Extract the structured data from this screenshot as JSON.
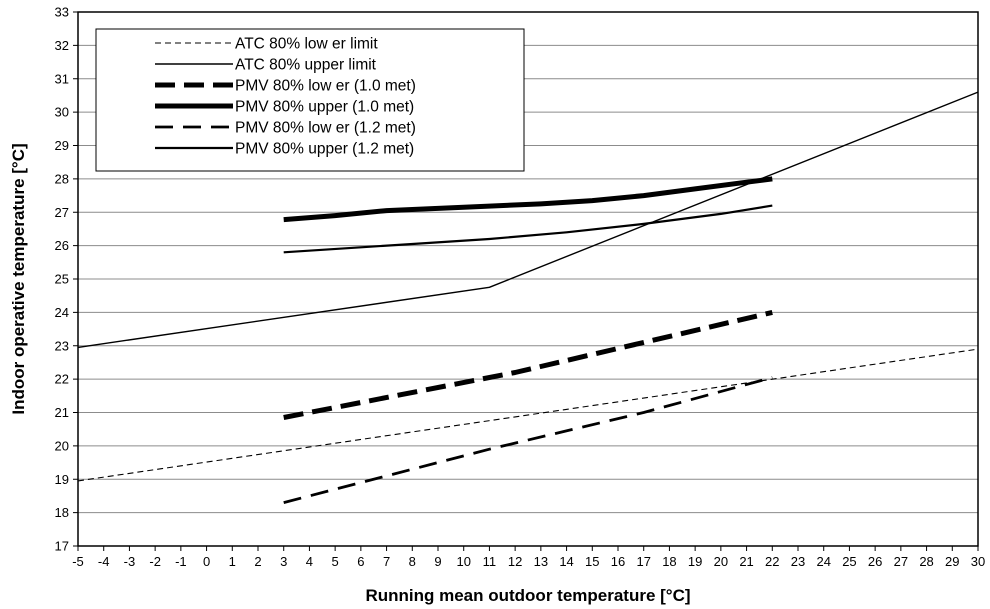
{
  "chart_data": {
    "type": "line",
    "title": "",
    "xlabel": "Running mean outdoor temperature [°C]",
    "ylabel": "Indoor operative temperature [°C]",
    "xlim": [
      -5,
      30
    ],
    "ylim": [
      17,
      33
    ],
    "x_ticks": [
      -5,
      -4,
      -3,
      -2,
      -1,
      0,
      1,
      2,
      3,
      4,
      5,
      6,
      7,
      8,
      9,
      10,
      11,
      12,
      13,
      14,
      15,
      16,
      17,
      18,
      19,
      20,
      21,
      22,
      23,
      24,
      25,
      26,
      27,
      28,
      29,
      30
    ],
    "y_ticks": [
      17,
      18,
      19,
      20,
      21,
      22,
      23,
      24,
      25,
      26,
      27,
      28,
      29,
      30,
      31,
      32,
      33
    ],
    "grid": "horizontal",
    "legend_position": "top-left",
    "series": [
      {
        "name": "ATC 80% low er limit",
        "style": "thin-dashed",
        "x": [
          -5,
          30
        ],
        "y": [
          18.95,
          22.9
        ]
      },
      {
        "name": "ATC 80% upper limit",
        "style": "thin-solid",
        "x": [
          -5,
          11,
          30
        ],
        "y": [
          22.95,
          24.75,
          30.6
        ]
      },
      {
        "name": "PMV 80% low er (1.0 met)",
        "style": "thick-dashed",
        "x": [
          3,
          12,
          22
        ],
        "y": [
          20.85,
          22.2,
          24.0
        ]
      },
      {
        "name": "PMV 80% upper (1.0 met)",
        "style": "thick-solid",
        "x": [
          3,
          5,
          7,
          10,
          13,
          15,
          17,
          19,
          21,
          22
        ],
        "y": [
          26.78,
          26.9,
          27.05,
          27.15,
          27.25,
          27.35,
          27.5,
          27.7,
          27.9,
          28.0
        ]
      },
      {
        "name": "PMV 80% low er (1.2 met)",
        "style": "medium-dashed",
        "x": [
          3,
          11,
          17,
          22
        ],
        "y": [
          18.3,
          19.9,
          21.0,
          22.05
        ]
      },
      {
        "name": "PMV 80% upper (1.2 met)",
        "style": "medium-solid",
        "x": [
          3,
          6,
          8,
          11,
          14,
          17,
          20,
          22
        ],
        "y": [
          25.8,
          25.95,
          26.05,
          26.2,
          26.4,
          26.65,
          26.95,
          27.2
        ]
      }
    ]
  }
}
